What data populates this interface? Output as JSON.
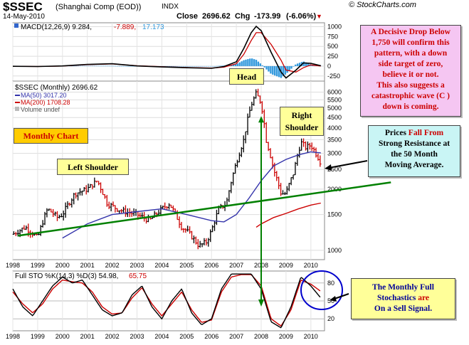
{
  "header": {
    "title": "$SSEC",
    "subtitle": "(Shanghai Comp (EOD))",
    "exchange": "INDX",
    "site": "© StockCharts.com",
    "date": "14-May-2010",
    "close_label": "Close",
    "close_value": "2696.62",
    "chg_label": "Chg",
    "chg_value": "-173.99",
    "chg_pct": "(-6.06%)",
    "chg_arrow": "▼",
    "arrow_color": "#cc0000"
  },
  "annotations": {
    "monthly_chart": "Monthly Chart",
    "left_shoulder": "Left Shoulder",
    "head": "Head",
    "right_shoulder_1": "Right",
    "right_shoulder_2": "Shoulder",
    "drop_note": [
      "A Decisive Drop Below",
      "1,750 will confirm this",
      "pattern, with a down",
      "side target of zero,",
      "believe it or not.",
      "This also suggests a",
      "catastrophic wave (C )",
      "down is coming."
    ],
    "resistance_note": {
      "l1a": "Prices ",
      "l1b": "Fall From",
      "l2": "Strong Resistance at",
      "l3": "the 50 Month",
      "l4": "Moving Average."
    },
    "stoch_note": {
      "l1": "The Monthly Full",
      "l2a": "Stochastics ",
      "l2b": "are",
      "l3": "On a Sell Signal."
    }
  },
  "colors": {
    "up_bar": "#000000",
    "down_bar": "#cc0000",
    "ma50": "#3333aa",
    "ma200": "#cc0000",
    "trendline": "#008000",
    "neckline_arrow": "#008000",
    "macd_line": "#000000",
    "signal_line": "#cc0000",
    "histogram": "#3399dd",
    "stoch_k": "#000000",
    "stoch_d": "#cc0000",
    "circle": "#0000cc"
  },
  "chart_data": [
    {
      "type": "line",
      "panel": "MACD",
      "legend": {
        "label": "MACD(12,26,9)",
        "macd": "9.284",
        "signal": "-7.889",
        "hist": "17.173"
      },
      "y_ticks": [
        "1000",
        "750",
        "500",
        "250",
        "0",
        "-250"
      ],
      "ylim": [
        -380,
        1100
      ],
      "series": [
        {
          "key": "macd",
          "x": [
            1998.0,
            1999.0,
            2000.0,
            2001.0,
            2002.0,
            2003.0,
            2004.0,
            2005.0,
            2006.0,
            2006.5,
            2007.0,
            2007.3,
            2007.6,
            2007.8,
            2008.0,
            2008.4,
            2008.8,
            2009.0,
            2009.4,
            2009.7,
            2010.0,
            2010.4
          ],
          "values": [
            -5,
            -10,
            5,
            45,
            60,
            5,
            -20,
            -40,
            -55,
            -10,
            110,
            450,
            850,
            1010,
            900,
            350,
            -150,
            -300,
            -100,
            80,
            70,
            10
          ]
        },
        {
          "key": "signal",
          "x": [
            1998.0,
            1999.0,
            2000.0,
            2001.0,
            2002.0,
            2003.0,
            2004.0,
            2005.0,
            2006.0,
            2006.5,
            2007.0,
            2007.3,
            2007.6,
            2007.8,
            2008.0,
            2008.4,
            2008.8,
            2009.0,
            2009.4,
            2009.7,
            2010.0,
            2010.4
          ],
          "values": [
            -5,
            -10,
            0,
            38,
            55,
            10,
            -15,
            -35,
            -50,
            -25,
            60,
            300,
            650,
            850,
            850,
            550,
            150,
            -100,
            -150,
            -40,
            30,
            0
          ]
        }
      ]
    },
    {
      "type": "bar",
      "panel": "Price (Monthly)",
      "scale": "log",
      "ylim": [
        900,
        6800
      ],
      "y_ticks": [
        "6000",
        "5500",
        "5000",
        "4500",
        "4000",
        "3500",
        "3000",
        "2500",
        "2000",
        "1500",
        "1000"
      ],
      "x_ticks": [
        "1998",
        "1999",
        "2000",
        "2001",
        "2002",
        "2003",
        "2004",
        "2005",
        "2006",
        "2007",
        "2008",
        "2009",
        "2010"
      ],
      "legend": [
        {
          "label": "$SSEC (Monthly)",
          "value": "2696.62"
        },
        {
          "label": "MA(50)",
          "value": "3017.20"
        },
        {
          "label": "MA(200)",
          "value": "1708.28"
        },
        {
          "label": "Volume undef",
          "value": ""
        }
      ],
      "series": [
        {
          "name": "$SSEC (Monthly)",
          "key": "price",
          "x": [
            1998.0,
            1998.5,
            1999.0,
            1999.4,
            1999.8,
            2000.0,
            2000.5,
            2001.0,
            2001.4,
            2001.8,
            2002.2,
            2002.5,
            2003.0,
            2003.5,
            2004.0,
            2004.3,
            2004.8,
            2005.0,
            2005.5,
            2005.8,
            2006.0,
            2006.3,
            2006.6,
            2007.0,
            2007.3,
            2007.6,
            2007.8,
            2008.0,
            2008.2,
            2008.5,
            2008.8,
            2009.0,
            2009.3,
            2009.6,
            2009.8,
            2010.0,
            2010.2,
            2010.4
          ],
          "values": [
            1200,
            1300,
            1150,
            1600,
            1450,
            1500,
            1900,
            2000,
            2200,
            1700,
            1600,
            1550,
            1500,
            1400,
            1600,
            1700,
            1300,
            1250,
            1050,
            1100,
            1250,
            1600,
            1700,
            2700,
            3500,
            5200,
            5900,
            5300,
            3500,
            2500,
            1900,
            1900,
            2400,
            3400,
            3200,
            3300,
            3000,
            2700
          ]
        },
        {
          "name": "MA(50)",
          "key": "ma50",
          "x": [
            2000.0,
            2001.0,
            2002.0,
            2003.0,
            2004.0,
            2005.0,
            2006.0,
            2006.5,
            2007.0,
            2007.5,
            2008.0,
            2008.5,
            2009.0,
            2009.5,
            2010.0,
            2010.4
          ],
          "values": [
            1150,
            1350,
            1500,
            1550,
            1600,
            1500,
            1400,
            1380,
            1500,
            1800,
            2200,
            2600,
            2800,
            2950,
            3050,
            3017
          ]
        },
        {
          "name": "MA(200)",
          "key": "ma200",
          "x": [
            2007.8,
            2008.0,
            2008.5,
            2009.0,
            2009.5,
            2010.0,
            2010.4
          ],
          "values": [
            1300,
            1350,
            1450,
            1520,
            1600,
            1670,
            1708
          ]
        }
      ],
      "trendline": {
        "x": [
          1998.2,
          2010.5
        ],
        "values": [
          1180,
          1960
        ]
      },
      "head_arrow": {
        "x": 2008.0,
        "from": 4500,
        "to": 400
      }
    },
    {
      "type": "line",
      "panel": "Full STO",
      "legend": {
        "label": "Full STO %K(14,3) %D(3)",
        "k": "54.98",
        "d": "65.75"
      },
      "y_ticks": [
        "80",
        "50",
        "20"
      ],
      "ylim": [
        0,
        100
      ],
      "series": [
        {
          "key": "k",
          "x": [
            1998.0,
            1998.4,
            1998.8,
            1999.2,
            1999.6,
            2000.0,
            2000.4,
            2000.8,
            2001.2,
            2001.6,
            2002.0,
            2002.4,
            2002.8,
            2003.2,
            2003.6,
            2004.0,
            2004.4,
            2004.8,
            2005.2,
            2005.6,
            2006.0,
            2006.4,
            2006.8,
            2007.2,
            2007.6,
            2008.0,
            2008.4,
            2008.8,
            2009.2,
            2009.6,
            2010.0,
            2010.4
          ],
          "values": [
            70,
            40,
            25,
            50,
            75,
            90,
            80,
            85,
            60,
            35,
            25,
            30,
            60,
            75,
            40,
            20,
            50,
            70,
            30,
            10,
            20,
            70,
            95,
            95,
            95,
            70,
            15,
            5,
            40,
            90,
            75,
            55
          ]
        },
        {
          "key": "d",
          "x": [
            1998.0,
            1998.4,
            1998.8,
            1999.2,
            1999.6,
            2000.0,
            2000.4,
            2000.8,
            2001.2,
            2001.6,
            2002.0,
            2002.4,
            2002.8,
            2003.2,
            2003.6,
            2004.0,
            2004.4,
            2004.8,
            2005.2,
            2005.6,
            2006.0,
            2006.4,
            2006.8,
            2007.2,
            2007.6,
            2008.0,
            2008.4,
            2008.8,
            2009.2,
            2009.6,
            2010.0,
            2010.4
          ],
          "values": [
            65,
            45,
            30,
            45,
            70,
            85,
            82,
            80,
            65,
            40,
            28,
            30,
            55,
            72,
            45,
            25,
            45,
            65,
            35,
            14,
            18,
            65,
            90,
            94,
            94,
            75,
            20,
            8,
            35,
            85,
            78,
            66
          ]
        }
      ]
    }
  ]
}
